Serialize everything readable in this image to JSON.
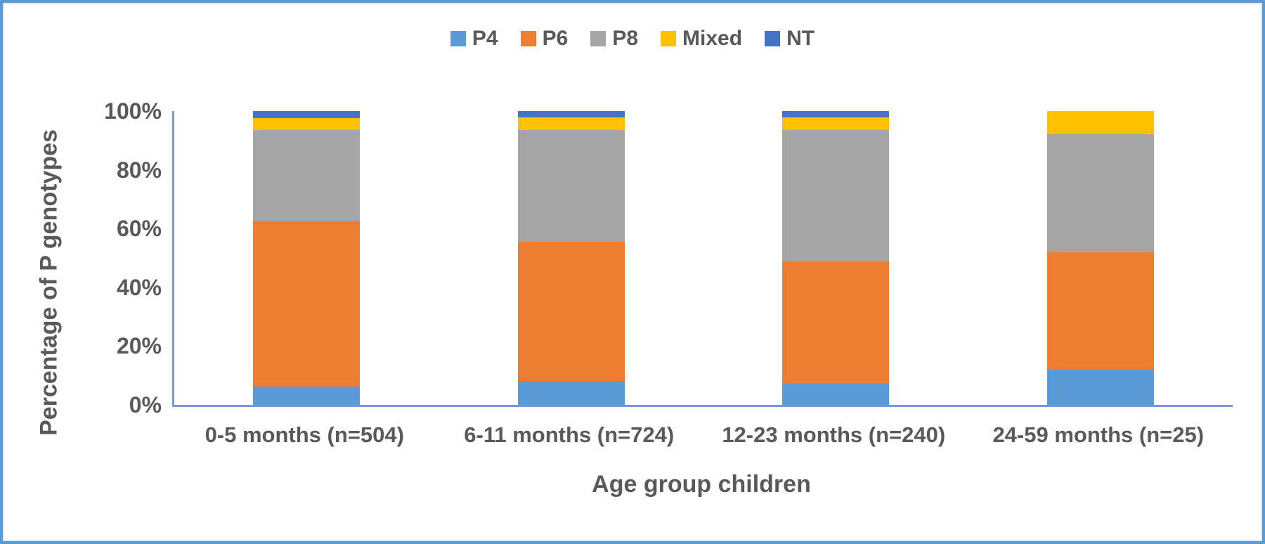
{
  "chart_data": {
    "type": "bar",
    "subtype": "stacked-percent",
    "title": "",
    "xlabel": "Age group children",
    "ylabel": "Percentage of P genotypes",
    "categories": [
      "0-5 months (n=504)",
      "6-11 months (n=724)",
      "12-23 months (n=240)",
      "24-59 months (n=25)"
    ],
    "series": [
      {
        "name": "P4",
        "color": "#5B9BD5",
        "values": [
          6.2,
          8.1,
          7.2,
          12
        ]
      },
      {
        "name": "P6",
        "color": "#ED7D31",
        "values": [
          56.3,
          47.4,
          41.6,
          40
        ]
      },
      {
        "name": "P8",
        "color": "#A5A5A5",
        "values": [
          31.1,
          38.0,
          44.7,
          40
        ]
      },
      {
        "name": "Mixed",
        "color": "#FFC000",
        "values": [
          4.1,
          4.3,
          4.3,
          8
        ]
      },
      {
        "name": "NT",
        "color": "#4472C4",
        "values": [
          2.3,
          2.2,
          2.2,
          0
        ]
      }
    ],
    "stack_order_bottom_to_top": [
      "P4",
      "P6",
      "P8",
      "Mixed",
      "NT"
    ],
    "y_ticks": [
      {
        "value": 0,
        "label": "0%"
      },
      {
        "value": 20,
        "label": "20%"
      },
      {
        "value": 40,
        "label": "40%"
      },
      {
        "value": 60,
        "label": "60%"
      },
      {
        "value": 80,
        "label": "80%"
      },
      {
        "value": 100,
        "label": "100%"
      }
    ],
    "ylim": [
      0,
      100
    ],
    "grid": false,
    "legend_position": "top"
  },
  "colors": {
    "axis_line": "#6E9ED9",
    "frame_border": "#5B9BD5",
    "text": "#595959"
  }
}
